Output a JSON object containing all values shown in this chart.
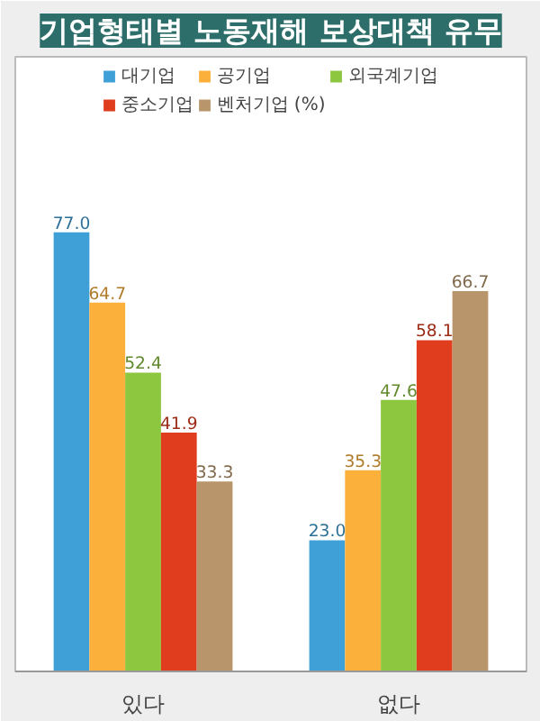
{
  "chart_data": {
    "type": "bar",
    "title": "기업형태별 노동재해 보상대책 유무",
    "categories": [
      "있다",
      "없다"
    ],
    "series": [
      {
        "name": "대기업",
        "color": "#3fa0d8",
        "values": [
          77.0,
          23.0
        ],
        "value_labels": [
          "77.0",
          "23.0"
        ]
      },
      {
        "name": "공기업",
        "color": "#fbb03b",
        "values": [
          64.7,
          35.3
        ]
      },
      {
        "name": "외국계기업",
        "color": "#8dc63f",
        "values": [
          52.4,
          47.6
        ]
      },
      {
        "name": "중소기업",
        "color": "#e03c1e",
        "values": [
          41.9,
          58.1
        ]
      },
      {
        "name": "벤처기업 (%)",
        "color": "#b8956a",
        "values": [
          33.3,
          66.7
        ]
      }
    ],
    "data_labels": true,
    "legend": "top",
    "grid": false
  }
}
